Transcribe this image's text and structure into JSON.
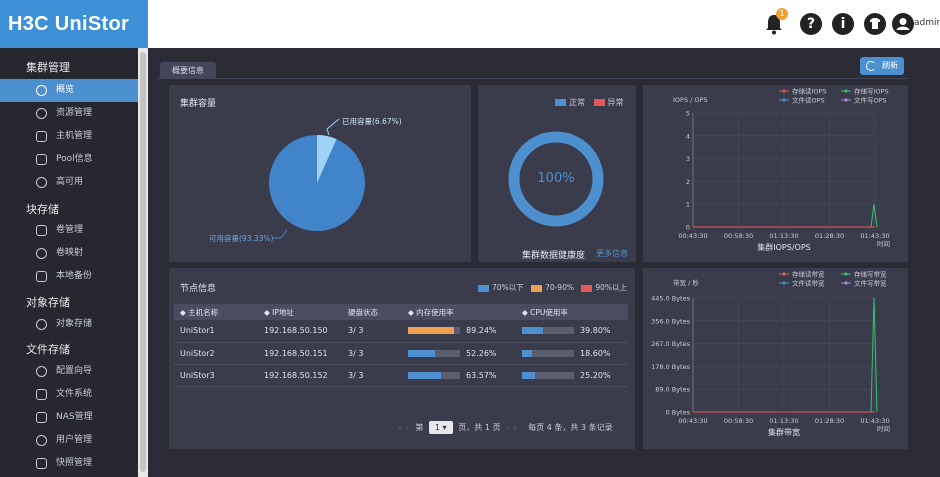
{
  "app": {
    "logo": "H3C UniStor",
    "username": "admin",
    "bell_badge": "1"
  },
  "topbar": {
    "help_glyph": "?",
    "info_glyph": "i"
  },
  "sidebar": {
    "groups": [
      {
        "label": "集群管理",
        "items": [
          {
            "label": "概览",
            "active": true,
            "icon": "dashboard-icon"
          },
          {
            "label": "资源管理",
            "icon": "globe-icon"
          },
          {
            "label": "主机管理",
            "icon": "monitor-icon"
          },
          {
            "label": "Pool信息",
            "icon": "pool-icon"
          },
          {
            "label": "高可用",
            "icon": "ha-icon"
          }
        ]
      },
      {
        "label": "块存储",
        "items": [
          {
            "label": "卷管理",
            "icon": "volume-icon"
          },
          {
            "label": "卷映射",
            "icon": "mapping-icon"
          },
          {
            "label": "本地备份",
            "icon": "backup-icon"
          }
        ]
      },
      {
        "label": "对象存储",
        "items": [
          {
            "label": "对象存储",
            "icon": "share-icon"
          }
        ]
      },
      {
        "label": "文件存储",
        "items": [
          {
            "label": "配置向导",
            "icon": "wizard-icon"
          },
          {
            "label": "文件系统",
            "icon": "edit-icon"
          },
          {
            "label": "NAS管理",
            "icon": "folder-icon"
          },
          {
            "label": "用户管理",
            "icon": "user-icon"
          },
          {
            "label": "快照管理",
            "icon": "camera-icon"
          }
        ]
      }
    ]
  },
  "main": {
    "tab": "概要信息",
    "refresh_label": "刷新",
    "capacity": {
      "title": "集群容量",
      "used_label": "已用容量(6.67%)",
      "available_label": "可用容量(93.33%)",
      "used_pct": 6.67,
      "colors": {
        "used": "#9fd2f4",
        "available": "#4184c9"
      }
    },
    "health": {
      "legend_normal": "正常",
      "legend_abnormal": "异常",
      "value": "100%",
      "title": "集群数据健康度",
      "more": "更多信息",
      "colors": {
        "normal": "#4d90cf",
        "abnormal": "#e05a5a"
      }
    },
    "iops_chart": {
      "title": "集群IOPS/OPS",
      "ylabel": "IOPS / OPS",
      "xlabel": "时间",
      "legend": [
        "存储读IOPS",
        "存储写IOPS",
        "文件读OPS",
        "文件写OPS"
      ]
    },
    "bandwidth_chart": {
      "title": "集群带宽",
      "ylabel": "带宽 / 秒",
      "xlabel": "时间",
      "legend": [
        "存储读带宽",
        "存储写带宽",
        "文件读带宽",
        "文件写带宽"
      ]
    },
    "nodes": {
      "title": "节点信息",
      "legend": [
        "70%以下",
        "70-90%",
        "90%以上"
      ],
      "legend_colors": [
        "#4d90cf",
        "#f0a050",
        "#e05a5a"
      ],
      "headers": [
        "主机名称",
        "IP地址",
        "硬盘状态",
        "内存使用率",
        "CPU使用率"
      ],
      "rows": [
        {
          "name": "UniStor1",
          "ip": "192.168.50.150",
          "disk": "3/ 3",
          "mem": "89.24%",
          "mem_val": 89.24,
          "cpu": "39.80%",
          "cpu_val": 39.8
        },
        {
          "name": "UniStor2",
          "ip": "192.168.50.151",
          "disk": "3/ 3",
          "mem": "52.26%",
          "mem_val": 52.26,
          "cpu": "18.60%",
          "cpu_val": 18.6
        },
        {
          "name": "UniStor3",
          "ip": "192.168.50.152",
          "disk": "3/ 3",
          "mem": "63.57%",
          "mem_val": 63.57,
          "cpu": "25.20%",
          "cpu_val": 25.2
        }
      ],
      "pager": {
        "prefix": "第",
        "page": "1",
        "suffix": "页，共 1 页",
        "summary": "每页 4 条，共 3 条记录"
      }
    }
  },
  "chart_data": [
    {
      "type": "line",
      "title": "集群IOPS/OPS",
      "ylabel": "IOPS / OPS",
      "xlabel": "时间",
      "x": [
        "00:43:30",
        "00:58:30",
        "01:13:30",
        "01:28:30",
        "01:43:30"
      ],
      "y_ticks": [
        "0",
        "1",
        "2",
        "3",
        "4",
        "5"
      ],
      "ylim": [
        0,
        5
      ],
      "series": [
        {
          "name": "存储读IOPS",
          "color": "#e05a5a",
          "values": [
            0,
            0,
            0,
            0,
            0
          ]
        },
        {
          "name": "存储写IOPS",
          "color": "#36c36f",
          "values": [
            0,
            0,
            0,
            0,
            1
          ]
        },
        {
          "name": "文件读OPS",
          "color": "#4d90cf",
          "values": [
            0,
            0,
            0,
            0,
            0
          ]
        },
        {
          "name": "文件写OPS",
          "color": "#a98ad9",
          "values": [
            0,
            0,
            0,
            0,
            0
          ]
        }
      ],
      "legend": "top-right"
    },
    {
      "type": "line",
      "title": "集群带宽",
      "ylabel": "带宽 / 秒",
      "xlabel": "时间",
      "x": [
        "00:43:30",
        "00:58:30",
        "01:13:30",
        "01:28:30",
        "01:43:30"
      ],
      "y_ticks": [
        "0 Bytes",
        "89.0 Bytes",
        "178.0 Bytes",
        "267.0 Bytes",
        "356.0 Bytes",
        "445.0 Bytes"
      ],
      "ylim": [
        0,
        445
      ],
      "series": [
        {
          "name": "存储读带宽",
          "color": "#e05a5a",
          "values": [
            0,
            0,
            0,
            0,
            0
          ]
        },
        {
          "name": "存储写带宽",
          "color": "#36c36f",
          "values": [
            0,
            0,
            0,
            0,
            445
          ]
        },
        {
          "name": "文件读带宽",
          "color": "#4d90cf",
          "values": [
            0,
            0,
            0,
            0,
            0
          ]
        },
        {
          "name": "文件写带宽",
          "color": "#a98ad9",
          "values": [
            0,
            0,
            0,
            0,
            0
          ]
        }
      ],
      "legend": "top-right"
    }
  ]
}
